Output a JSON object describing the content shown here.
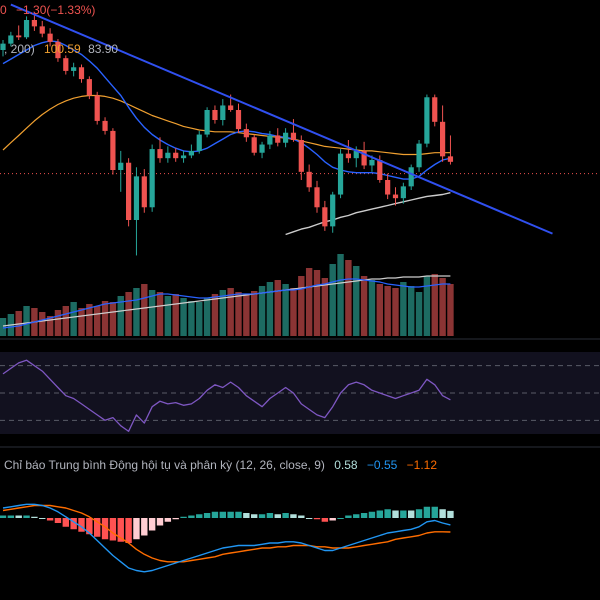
{
  "header": {
    "change_prefix": "0",
    "change_value": "−1.30",
    "change_percent": "(−1.33%)",
    "ma_params": ", 200)",
    "ma_value_1": "100.59",
    "ma_value_2": "83.90"
  },
  "macd": {
    "title": "Chỉ báo Trung bình Động hội tụ và phân kỳ (12, 26, close, 9)",
    "value_hist": "0.58",
    "value_macd": "−0.55",
    "value_signal": "−1.12"
  },
  "colors": {
    "background": "#000000",
    "up": "#26a69a",
    "down": "#ef5350",
    "ma_short": "#2962ff",
    "ma_mid": "#f0a030",
    "ma_long": "#cccccc",
    "trendline": "#3050f0",
    "rsi_line": "#7e57c2",
    "macd_line": "#2196f3",
    "signal_line": "#ff6d00",
    "hist_pos_strong": "#26a69a",
    "hist_pos_weak": "#b2dfdb",
    "hist_neg_strong": "#ff5252",
    "hist_neg_weak": "#ffcdd2",
    "text_orange": "#f0a030",
    "text_blue": "#2962ff",
    "text_red": "#ef5350",
    "text_grey": "#b2b5be"
  },
  "chart_data": [
    {
      "type": "candlestick",
      "panel": "price",
      "candles": [
        [
          97.5,
          98.6,
          96.8,
          98.2
        ],
        [
          98.2,
          99.5,
          97.9,
          99.1
        ],
        [
          99.1,
          100.2,
          98.6,
          98.9
        ],
        [
          98.9,
          101.2,
          98.7,
          100.8
        ],
        [
          100.8,
          101.6,
          99.6,
          100.1
        ],
        [
          100.1,
          100.7,
          98.9,
          99.3
        ],
        [
          99.3,
          99.9,
          97.9,
          98.4
        ],
        [
          98.4,
          98.7,
          96.2,
          96.6
        ],
        [
          96.6,
          96.9,
          94.8,
          95.2
        ],
        [
          95.2,
          96.1,
          94.6,
          95.6
        ],
        [
          95.6,
          95.9,
          93.9,
          94.3
        ],
        [
          94.3,
          94.6,
          92.1,
          92.5
        ],
        [
          92.5,
          92.9,
          89.3,
          89.7
        ],
        [
          89.7,
          90.1,
          88.2,
          88.6
        ],
        [
          88.6,
          88.9,
          83.8,
          84.3
        ],
        [
          84.3,
          86.4,
          81.9,
          85.1
        ],
        [
          85.1,
          85.6,
          78.1,
          78.8
        ],
        [
          78.8,
          84.6,
          74.9,
          83.6
        ],
        [
          83.6,
          84.4,
          79.6,
          80.2
        ],
        [
          80.2,
          87.1,
          79.7,
          86.6
        ],
        [
          86.6,
          87.9,
          85.1,
          85.6
        ],
        [
          85.6,
          86.9,
          85.1,
          86.2
        ],
        [
          86.2,
          86.7,
          85.2,
          85.6
        ],
        [
          85.6,
          86.4,
          85.1,
          85.9
        ],
        [
          85.9,
          87.1,
          85.6,
          86.4
        ],
        [
          86.4,
          88.6,
          86.1,
          88.2
        ],
        [
          88.2,
          91.2,
          87.9,
          90.9
        ],
        [
          90.9,
          91.4,
          89.4,
          89.8
        ],
        [
          89.8,
          92.1,
          89.2,
          91.4
        ],
        [
          91.4,
          92.6,
          90.7,
          90.9
        ],
        [
          90.9,
          91.6,
          88.4,
          88.8
        ],
        [
          88.8,
          89.4,
          87.4,
          87.9
        ],
        [
          87.9,
          88.2,
          85.9,
          86.2
        ],
        [
          86.2,
          87.4,
          85.6,
          87.1
        ],
        [
          87.1,
          88.6,
          86.6,
          88.1
        ],
        [
          88.1,
          88.9,
          86.9,
          87.3
        ],
        [
          87.3,
          88.9,
          86.8,
          88.4
        ],
        [
          88.4,
          89.9,
          87.4,
          87.6
        ],
        [
          87.6,
          88.1,
          83.2,
          84.1
        ],
        [
          84.1,
          84.9,
          81.9,
          82.4
        ],
        [
          82.4,
          83.1,
          79.6,
          80.2
        ],
        [
          80.2,
          80.9,
          77.6,
          78.1
        ],
        [
          78.1,
          81.9,
          77.4,
          81.6
        ],
        [
          81.6,
          86.6,
          81.2,
          86.1
        ],
        [
          86.1,
          87.6,
          85.1,
          85.6
        ],
        [
          85.6,
          86.9,
          84.6,
          86.4
        ],
        [
          86.4,
          87.4,
          84.4,
          84.8
        ],
        [
          84.8,
          85.9,
          84.1,
          85.4
        ],
        [
          85.4,
          85.9,
          82.9,
          83.2
        ],
        [
          83.2,
          83.9,
          81.1,
          81.6
        ],
        [
          81.6,
          82.4,
          80.4,
          81.2
        ],
        [
          81.2,
          82.9,
          80.6,
          82.5
        ],
        [
          82.5,
          84.9,
          82.1,
          84.6
        ],
        [
          84.6,
          87.6,
          84.1,
          87.2
        ],
        [
          87.2,
          92.6,
          86.8,
          92.3
        ],
        [
          92.3,
          92.6,
          89.1,
          89.6
        ],
        [
          89.6,
          91.4,
          85.2,
          85.8
        ],
        [
          85.8,
          88.1,
          84.9,
          85.2
        ]
      ],
      "ma_short": [
        96,
        96.5,
        97,
        97.5,
        98,
        98.3,
        98.5,
        98.4,
        98,
        97.5,
        97,
        96.3,
        95.5,
        94.5,
        93.5,
        92.5,
        91.2,
        90,
        89,
        88.2,
        87.6,
        87.1,
        86.7,
        86.4,
        86.3,
        86.4,
        86.7,
        87.2,
        87.7,
        88.2,
        88.5,
        88.6,
        88.5,
        88.3,
        88.2,
        88,
        87.9,
        87.7,
        87.3,
        86.7,
        86,
        85.2,
        84.6,
        84.3,
        84.1,
        84,
        84,
        84,
        83.9,
        83.7,
        83.5,
        83.3,
        83.3,
        83.6,
        84.3,
        84.9,
        85.4,
        85.6
      ],
      "ma_mid": [
        86.5,
        87.3,
        88.1,
        88.9,
        89.7,
        90.4,
        91,
        91.5,
        91.9,
        92.2,
        92.4,
        92.5,
        92.5,
        92.4,
        92.2,
        91.9,
        91.5,
        91.1,
        90.7,
        90.3,
        90,
        89.7,
        89.4,
        89.1,
        88.9,
        88.7,
        88.6,
        88.5,
        88.5,
        88.5,
        88.4,
        88.3,
        88.2,
        88.1,
        88,
        87.9,
        87.8,
        87.7,
        87.5,
        87.3,
        87.1,
        86.9,
        86.8,
        86.7,
        86.6,
        86.5,
        86.4,
        86.4,
        86.3,
        86.2,
        86.1,
        86,
        86,
        86,
        86.1,
        86.2,
        86.2,
        86.2
      ],
      "ma_long_visible_from_index": 36,
      "ma_long": [
        77.2,
        77.5,
        77.8,
        78,
        78.3,
        78.6,
        78.8,
        79.1,
        79.3,
        79.6,
        79.8,
        80,
        80.2,
        80.4,
        80.6,
        80.8,
        81,
        81.2,
        81.4,
        81.5,
        81.6,
        81.8
      ],
      "trendline": [
        [
          1.0,
          102.5
        ],
        [
          70.0,
          77.3
        ]
      ],
      "last_price_line": 83.9
    },
    {
      "type": "bar",
      "panel": "volume",
      "volume": [
        18,
        22,
        25,
        30,
        28,
        24,
        20,
        26,
        30,
        34,
        28,
        32,
        30,
        35,
        34,
        40,
        44,
        48,
        52,
        46,
        44,
        40,
        42,
        38,
        35,
        34,
        38,
        42,
        46,
        48,
        44,
        42,
        45,
        50,
        54,
        56,
        52,
        48,
        60,
        68,
        66,
        58,
        72,
        82,
        76,
        70,
        60,
        56,
        52,
        50,
        48,
        54,
        50,
        44,
        60,
        62,
        58,
        52
      ],
      "volume_ma": [
        10,
        11,
        12,
        13,
        14,
        15,
        16,
        17,
        18,
        19,
        20,
        21,
        22,
        23,
        24,
        25,
        26,
        27,
        28,
        29,
        30,
        31,
        32,
        33,
        34,
        35,
        36,
        37,
        38,
        39,
        40,
        41,
        42,
        43,
        44,
        45,
        46,
        47,
        48,
        49,
        50,
        51,
        52,
        53,
        54,
        55,
        56,
        57,
        57,
        58,
        58,
        59,
        59,
        59,
        60,
        60,
        60,
        60
      ],
      "volume_ma_short": [
        8,
        9,
        10,
        12,
        14,
        16,
        18,
        20,
        22,
        24,
        26,
        28,
        30,
        32,
        33,
        34,
        35,
        36,
        38,
        40,
        42,
        42,
        41,
        40,
        39,
        38,
        38,
        39,
        40,
        41,
        42,
        42,
        42,
        43,
        44,
        45,
        46,
        46,
        47,
        49,
        51,
        52,
        54,
        56,
        57,
        57,
        56,
        55,
        54,
        52,
        51,
        50,
        49,
        49,
        50,
        51,
        52,
        52
      ]
    },
    {
      "type": "line",
      "panel": "rsi",
      "rsi": [
        64,
        68,
        72,
        74,
        70,
        66,
        60,
        54,
        48,
        46,
        42,
        38,
        34,
        30,
        32,
        26,
        22,
        34,
        28,
        40,
        44,
        42,
        43,
        41,
        42,
        46,
        52,
        56,
        54,
        58,
        54,
        48,
        44,
        40,
        46,
        50,
        54,
        50,
        42,
        38,
        34,
        32,
        40,
        50,
        56,
        58,
        56,
        52,
        50,
        48,
        46,
        48,
        50,
        52,
        60,
        56,
        48,
        45
      ],
      "levels": [
        70,
        50,
        30
      ]
    },
    {
      "type": "bar",
      "panel": "macd",
      "macd": [
        0.8,
        0.9,
        1,
        1.1,
        1.1,
        1,
        0.8,
        0.5,
        0.1,
        -0.3,
        -0.7,
        -1.2,
        -1.8,
        -2.4,
        -3,
        -3.5,
        -4,
        -4.2,
        -4.3,
        -4.2,
        -4,
        -3.8,
        -3.6,
        -3.4,
        -3.2,
        -3,
        -2.8,
        -2.6,
        -2.4,
        -2.3,
        -2.2,
        -2.2,
        -2.2,
        -2.1,
        -2,
        -2,
        -1.9,
        -1.9,
        -2,
        -2.2,
        -2.4,
        -2.6,
        -2.6,
        -2.4,
        -2.2,
        -2,
        -1.8,
        -1.6,
        -1.4,
        -1.2,
        -1.1,
        -1,
        -0.9,
        -0.7,
        -0.3,
        -0.2,
        -0.4,
        -0.55
      ],
      "signal": [
        0.6,
        0.7,
        0.8,
        0.9,
        1,
        1,
        1,
        0.9,
        0.8,
        0.6,
        0.4,
        0.1,
        -0.3,
        -0.7,
        -1.2,
        -1.6,
        -2,
        -2.5,
        -2.9,
        -3.2,
        -3.4,
        -3.5,
        -3.5,
        -3.5,
        -3.4,
        -3.3,
        -3.2,
        -3.1,
        -2.9,
        -2.8,
        -2.7,
        -2.6,
        -2.5,
        -2.4,
        -2.4,
        -2.3,
        -2.3,
        -2.2,
        -2.2,
        -2.2,
        -2.3,
        -2.3,
        -2.4,
        -2.4,
        -2.4,
        -2.3,
        -2.2,
        -2.1,
        -2,
        -1.9,
        -1.7,
        -1.6,
        -1.5,
        -1.4,
        -1.2,
        -1.1,
        -1.1,
        -1.12
      ]
    }
  ]
}
